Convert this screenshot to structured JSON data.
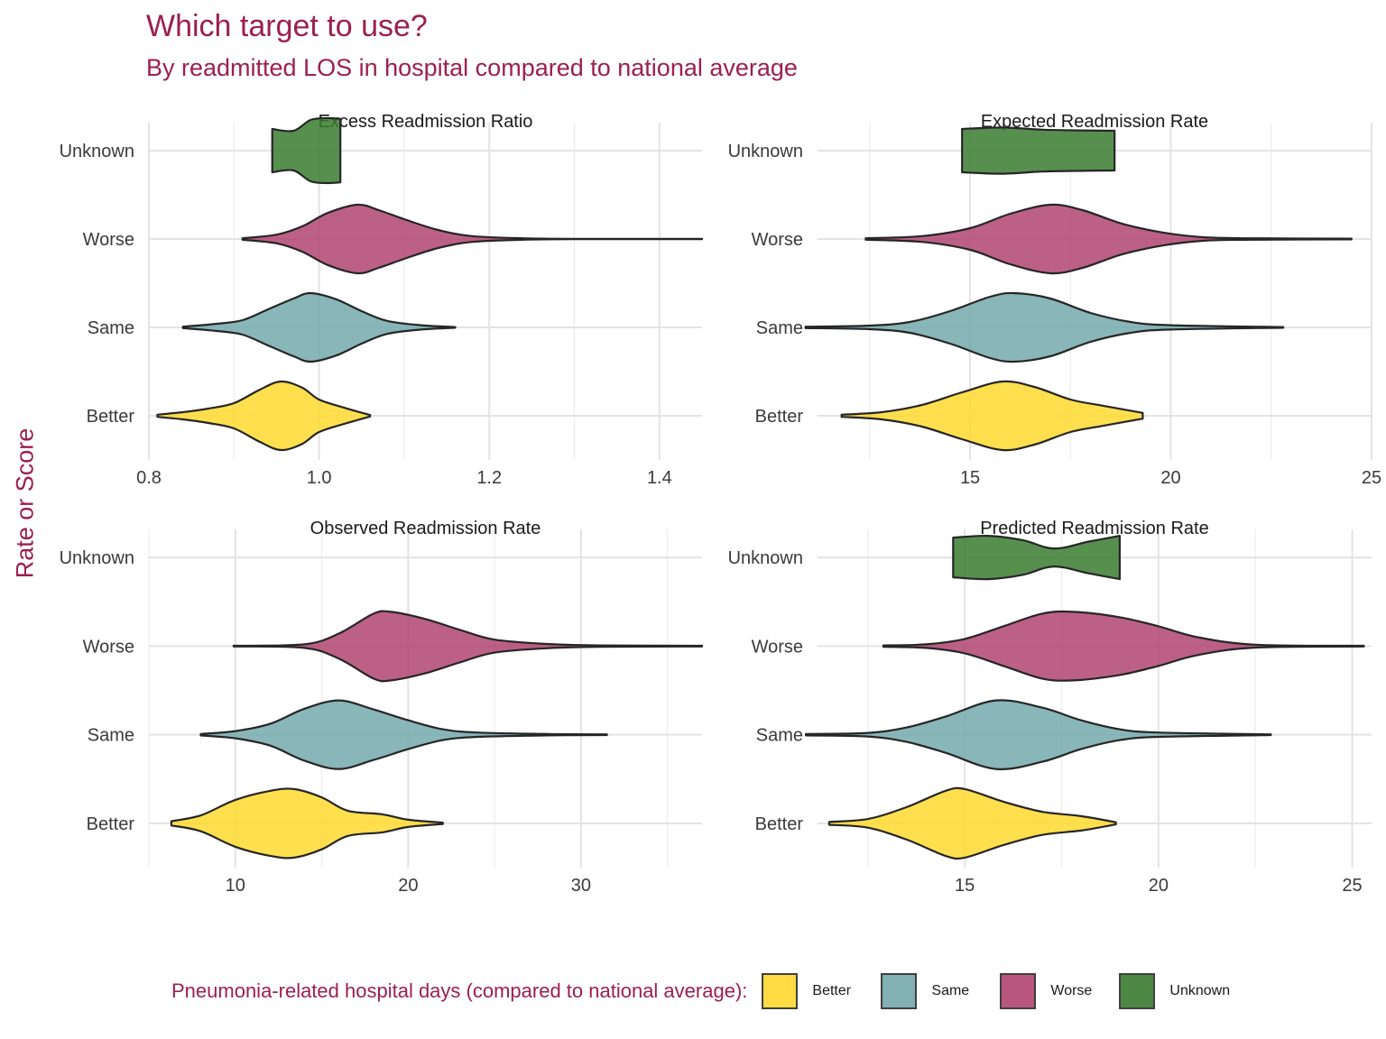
{
  "title": "Which target to use?",
  "subtitle": "By readmitted LOS in hospital compared to national average",
  "ylabel": "Rate or Score",
  "legend": {
    "title": "Pneumonia-related hospital days (compared to national average):",
    "items": [
      {
        "label": "Better",
        "color": "#FFD92F"
      },
      {
        "label": "Same",
        "color": "#74A9AB"
      },
      {
        "label": "Worse",
        "color": "#B24471"
      },
      {
        "label": "Unknown",
        "color": "#3A7B30"
      }
    ]
  },
  "chart_data": [
    {
      "type": "violin",
      "title": "Excess Readmission Ratio",
      "categories": [
        "Better",
        "Same",
        "Worse",
        "Unknown"
      ],
      "xlim": [
        0.8,
        1.45
      ],
      "xticks": [
        0.8,
        1.0,
        1.2,
        1.4
      ],
      "xtick_labels": [
        "0.8",
        "1.0",
        "1.2",
        "1.4"
      ],
      "series": [
        {
          "name": "Better",
          "density": [
            [
              0.81,
              0.03
            ],
            [
              0.84,
              0.1
            ],
            [
              0.87,
              0.2
            ],
            [
              0.9,
              0.35
            ],
            [
              0.93,
              0.72
            ],
            [
              0.955,
              0.95
            ],
            [
              0.98,
              0.78
            ],
            [
              1.0,
              0.45
            ],
            [
              1.03,
              0.22
            ],
            [
              1.06,
              0.02
            ]
          ]
        },
        {
          "name": "Same",
          "density": [
            [
              0.84,
              0.02
            ],
            [
              0.88,
              0.1
            ],
            [
              0.91,
              0.2
            ],
            [
              0.94,
              0.5
            ],
            [
              0.97,
              0.8
            ],
            [
              0.99,
              0.95
            ],
            [
              1.02,
              0.78
            ],
            [
              1.05,
              0.45
            ],
            [
              1.08,
              0.18
            ],
            [
              1.12,
              0.06
            ],
            [
              1.16,
              0.01
            ]
          ]
        },
        {
          "name": "Worse",
          "density": [
            [
              0.91,
              0.02
            ],
            [
              0.95,
              0.12
            ],
            [
              0.98,
              0.35
            ],
            [
              1.01,
              0.72
            ],
            [
              1.045,
              0.95
            ],
            [
              1.07,
              0.8
            ],
            [
              1.1,
              0.55
            ],
            [
              1.14,
              0.25
            ],
            [
              1.18,
              0.08
            ],
            [
              1.24,
              0.02
            ],
            [
              1.3,
              0.006
            ],
            [
              1.45,
              0.004
            ]
          ]
        },
        {
          "name": "Unknown",
          "density": [
            [
              0.945,
              0.6
            ],
            [
              0.97,
              0.55
            ],
            [
              0.99,
              0.85
            ],
            [
              1.01,
              0.9
            ],
            [
              1.025,
              0.88
            ]
          ]
        }
      ]
    },
    {
      "type": "violin",
      "title": "Expected Readmission Rate",
      "categories": [
        "Better",
        "Same",
        "Worse",
        "Unknown"
      ],
      "xlim": [
        11.2,
        25
      ],
      "xticks": [
        15,
        20,
        25
      ],
      "xtick_labels": [
        "15",
        "20",
        "25"
      ],
      "series": [
        {
          "name": "Better",
          "density": [
            [
              11.8,
              0.03
            ],
            [
              12.8,
              0.1
            ],
            [
              13.8,
              0.3
            ],
            [
              14.8,
              0.65
            ],
            [
              15.8,
              0.95
            ],
            [
              16.6,
              0.8
            ],
            [
              17.5,
              0.45
            ],
            [
              18.3,
              0.28
            ],
            [
              19.3,
              0.08
            ]
          ]
        },
        {
          "name": "Same",
          "density": [
            [
              10.9,
              0.02
            ],
            [
              12.5,
              0.05
            ],
            [
              13.5,
              0.15
            ],
            [
              14.5,
              0.45
            ],
            [
              15.5,
              0.85
            ],
            [
              16.1,
              0.95
            ],
            [
              17.0,
              0.8
            ],
            [
              18.0,
              0.4
            ],
            [
              19.0,
              0.15
            ],
            [
              20.0,
              0.06
            ],
            [
              22.8,
              0.01
            ]
          ]
        },
        {
          "name": "Worse",
          "density": [
            [
              12.4,
              0.02
            ],
            [
              13.8,
              0.08
            ],
            [
              15.0,
              0.3
            ],
            [
              16.0,
              0.7
            ],
            [
              17.0,
              0.95
            ],
            [
              17.8,
              0.8
            ],
            [
              18.8,
              0.42
            ],
            [
              19.8,
              0.18
            ],
            [
              20.8,
              0.05
            ],
            [
              22.0,
              0.02
            ],
            [
              24.5,
              0.01
            ]
          ]
        },
        {
          "name": "Unknown",
          "density": [
            [
              14.8,
              0.6
            ],
            [
              15.8,
              0.64
            ],
            [
              16.8,
              0.58
            ],
            [
              17.8,
              0.56
            ],
            [
              18.6,
              0.55
            ]
          ]
        }
      ]
    },
    {
      "type": "violin",
      "title": "Observed Readmission Rate",
      "categories": [
        "Better",
        "Same",
        "Worse",
        "Unknown"
      ],
      "xlim": [
        5,
        37
      ],
      "xticks": [
        10,
        20,
        30
      ],
      "xtick_labels": [
        "10",
        "20",
        "30"
      ],
      "series": [
        {
          "name": "Better",
          "density": [
            [
              6.3,
              0.06
            ],
            [
              8.0,
              0.22
            ],
            [
              10.0,
              0.65
            ],
            [
              12.0,
              0.9
            ],
            [
              13.4,
              0.95
            ],
            [
              15.0,
              0.72
            ],
            [
              16.5,
              0.35
            ],
            [
              18.5,
              0.25
            ],
            [
              20.0,
              0.1
            ],
            [
              22.0,
              0.02
            ]
          ]
        },
        {
          "name": "Same",
          "density": [
            [
              8.0,
              0.02
            ],
            [
              10.0,
              0.1
            ],
            [
              12.0,
              0.3
            ],
            [
              14.0,
              0.72
            ],
            [
              16.0,
              0.95
            ],
            [
              18.0,
              0.7
            ],
            [
              20.0,
              0.4
            ],
            [
              22.0,
              0.15
            ],
            [
              24.0,
              0.06
            ],
            [
              28.0,
              0.02
            ],
            [
              31.5,
              0.01
            ]
          ]
        },
        {
          "name": "Worse",
          "density": [
            [
              9.9,
              0.01
            ],
            [
              14.0,
              0.05
            ],
            [
              16.0,
              0.35
            ],
            [
              18.0,
              0.9
            ],
            [
              19.0,
              0.95
            ],
            [
              21.0,
              0.75
            ],
            [
              23.0,
              0.45
            ],
            [
              25.0,
              0.18
            ],
            [
              28.0,
              0.06
            ],
            [
              31.0,
              0.02
            ],
            [
              37.0,
              0.01
            ]
          ]
        }
      ]
    },
    {
      "type": "violin",
      "title": "Predicted Readmission Rate",
      "categories": [
        "Better",
        "Same",
        "Worse",
        "Unknown"
      ],
      "xlim": [
        11.2,
        25.5
      ],
      "xticks": [
        15,
        20,
        25
      ],
      "xtick_labels": [
        "15",
        "20",
        "25"
      ],
      "series": [
        {
          "name": "Better",
          "density": [
            [
              11.5,
              0.04
            ],
            [
              12.5,
              0.12
            ],
            [
              13.5,
              0.45
            ],
            [
              14.5,
              0.9
            ],
            [
              15.0,
              0.95
            ],
            [
              16.0,
              0.6
            ],
            [
              17.0,
              0.32
            ],
            [
              18.0,
              0.2
            ],
            [
              18.9,
              0.03
            ]
          ]
        },
        {
          "name": "Same",
          "density": [
            [
              10.9,
              0.02
            ],
            [
              12.5,
              0.05
            ],
            [
              13.5,
              0.2
            ],
            [
              14.5,
              0.5
            ],
            [
              15.8,
              0.95
            ],
            [
              17.0,
              0.75
            ],
            [
              18.0,
              0.4
            ],
            [
              19.0,
              0.15
            ],
            [
              20.0,
              0.06
            ],
            [
              22.9,
              0.01
            ]
          ]
        },
        {
          "name": "Worse",
          "density": [
            [
              12.9,
              0.02
            ],
            [
              14.0,
              0.05
            ],
            [
              15.0,
              0.2
            ],
            [
              16.0,
              0.55
            ],
            [
              17.0,
              0.9
            ],
            [
              17.8,
              0.95
            ],
            [
              19.0,
              0.8
            ],
            [
              20.0,
              0.55
            ],
            [
              21.0,
              0.25
            ],
            [
              22.5,
              0.04
            ],
            [
              25.3,
              0.01
            ]
          ]
        },
        {
          "name": "Unknown",
          "density": [
            [
              14.7,
              0.55
            ],
            [
              15.6,
              0.6
            ],
            [
              16.5,
              0.48
            ],
            [
              17.3,
              0.25
            ],
            [
              18.2,
              0.44
            ],
            [
              19.0,
              0.6
            ]
          ]
        }
      ]
    }
  ]
}
